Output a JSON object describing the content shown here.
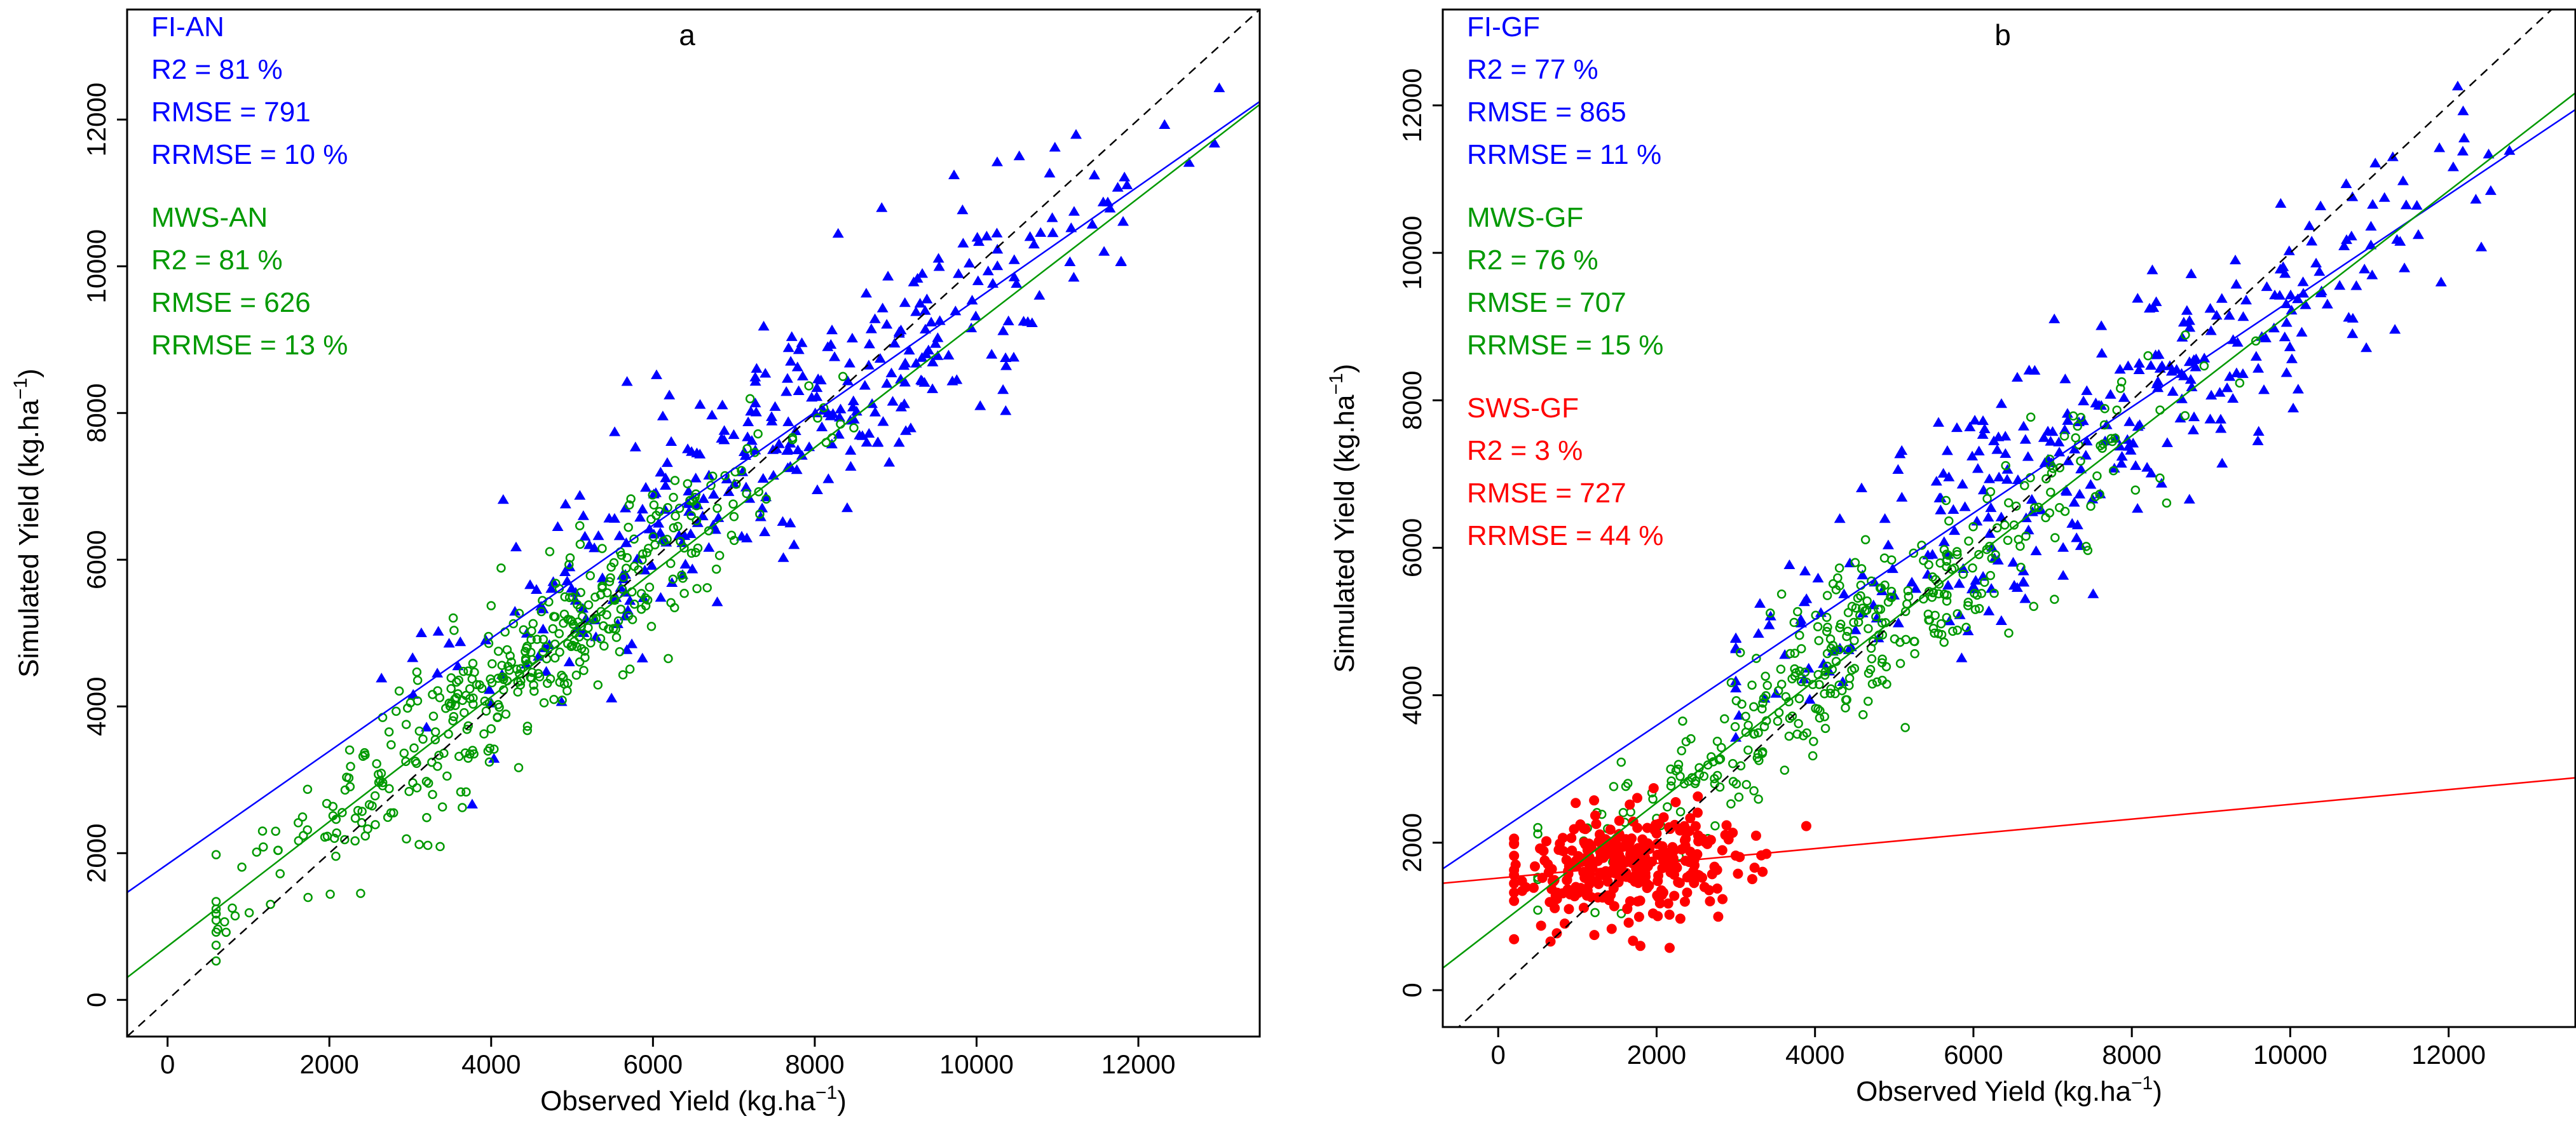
{
  "colors": {
    "fi": "#0000ff",
    "mws": "#009900",
    "sws": "#ff0000",
    "axis": "#000000",
    "one_to_one": "#000000"
  },
  "chart_data": [
    {
      "id": "a",
      "type": "scatter",
      "title": "a",
      "xlabel": "Observed Yield (kg.ha",
      "ylabel": "Simulated Yield (kg.ha",
      "unit_superscript": "−1",
      "unit_close": ")",
      "xlim": [
        -500,
        13500
      ],
      "ylim": [
        -500,
        13500
      ],
      "xticks": [
        0,
        2000,
        4000,
        6000,
        8000,
        10000,
        12000
      ],
      "yticks": [
        0,
        2000,
        4000,
        6000,
        8000,
        10000,
        12000
      ],
      "xtick_labels": [
        "0",
        "2000",
        "4000",
        "6000",
        "8000",
        "10000",
        "12000"
      ],
      "ytick_labels": [
        "0",
        "2000",
        "4000",
        "6000",
        "8000",
        "10000",
        "12000"
      ],
      "stats": [
        {
          "key": "fi",
          "lines": [
            "FI-AN",
            "R2 = 81 %",
            "RMSE = 791",
            "RRMSE = 10 %"
          ]
        },
        {
          "key": "mws",
          "lines": [
            "MWS-AN",
            "R2 = 81 %",
            "RMSE = 626",
            "RRMSE = 13 %"
          ]
        }
      ],
      "series": [
        {
          "name": "FI-AN",
          "key": "fi",
          "marker": "triangle",
          "x_range": [
            2000,
            13000
          ],
          "n": 360,
          "slope": 0.78,
          "intercept": 1800,
          "sd": 750,
          "seed": 11,
          "fit": [
            1850,
            0.77
          ]
        },
        {
          "name": "MWS-AN",
          "key": "mws",
          "marker": "circle-open",
          "x_range": [
            600,
            10000
          ],
          "n": 420,
          "slope": 0.87,
          "intercept": 700,
          "sd": 520,
          "seed": 23,
          "fit": [
            730,
            0.85
          ],
          "center": 4200,
          "spread": 1700
        }
      ]
    },
    {
      "id": "b",
      "type": "scatter",
      "title": "b",
      "xlabel": "Observed Yield (kg.ha",
      "ylabel": "Simulated Yield (kg.ha",
      "unit_superscript": "−1",
      "unit_close": ")",
      "xlim": [
        -700,
        13600
      ],
      "ylim": [
        -500,
        13300
      ],
      "xticks": [
        0,
        2000,
        4000,
        6000,
        8000,
        10000,
        12000
      ],
      "yticks": [
        0,
        2000,
        4000,
        6000,
        8000,
        10000,
        12000
      ],
      "xtick_labels": [
        "0",
        "2000",
        "4000",
        "6000",
        "8000",
        "10000",
        "12000"
      ],
      "ytick_labels": [
        "0",
        "2000",
        "4000",
        "6000",
        "8000",
        "10000",
        "12000"
      ],
      "stats": [
        {
          "key": "fi",
          "lines": [
            "FI-GF",
            "R2 = 77 %",
            "RMSE = 865",
            "RRMSE = 11 %"
          ]
        },
        {
          "key": "mws",
          "lines": [
            "MWS-GF",
            "R2 = 76 %",
            "RMSE = 707",
            "RRMSE = 15 %"
          ]
        },
        {
          "key": "sws",
          "lines": [
            "SWS-GF",
            "R2 = 3 %",
            "RMSE = 727",
            "RRMSE = 44 %"
          ]
        }
      ],
      "series": [
        {
          "name": "FI-GF",
          "key": "fi",
          "marker": "triangle",
          "x_range": [
            3000,
            13000
          ],
          "n": 340,
          "slope": 0.72,
          "intercept": 2150,
          "sd": 780,
          "seed": 37,
          "fit": [
            2150,
            0.72
          ],
          "center": 7500,
          "spread": 2200
        },
        {
          "name": "MWS-GF",
          "key": "mws",
          "marker": "circle-open",
          "x_range": [
            500,
            10000
          ],
          "n": 380,
          "slope": 0.83,
          "intercept": 900,
          "sd": 560,
          "seed": 41,
          "fit": [
            880,
            0.83
          ],
          "center": 4600,
          "spread": 1900
        },
        {
          "name": "SWS-GF",
          "key": "sws",
          "marker": "circle-filled",
          "x_range": [
            200,
            4500
          ],
          "n": 320,
          "slope": 0.1,
          "intercept": 1500,
          "sd": 380,
          "seed": 53,
          "fit": [
            1520,
            0.1
          ],
          "center": 1700,
          "spread": 800
        }
      ]
    }
  ]
}
